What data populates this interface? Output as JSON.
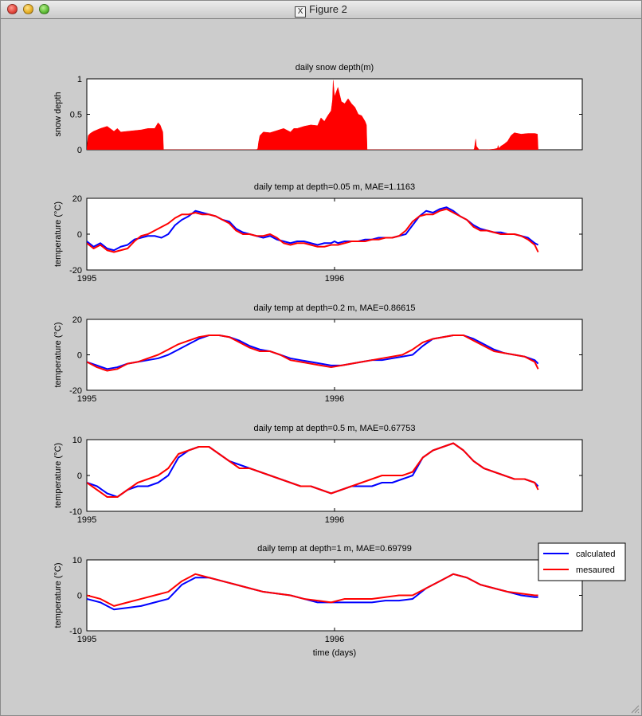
{
  "window": {
    "title": "Figure 2",
    "icon": "x11-icon"
  },
  "colors": {
    "calculated": "#0000ff",
    "measured": "#ff0000",
    "snow": "#ff0000"
  },
  "legend": {
    "items": [
      "calculated",
      "mesaured"
    ],
    "placement": "right of bottom panel, top"
  },
  "chart_data": [
    {
      "type": "area",
      "title": "daily snow depth(m)",
      "xlabel": "",
      "ylabel": "snow depth",
      "ylim": [
        0,
        1
      ],
      "yticks": [
        "0",
        "0.5",
        "1"
      ],
      "xlim": [
        0,
        730
      ],
      "xticks": [],
      "grid": false,
      "series": [
        {
          "x": [
            0,
            2,
            5,
            10,
            20,
            30,
            40,
            45,
            50,
            60,
            70,
            80,
            90,
            100,
            105,
            108,
            110,
            112,
            113,
            130,
            200,
            250,
            252,
            253,
            255,
            260,
            270,
            280,
            290,
            300,
            305,
            310,
            320,
            330,
            340,
            345,
            350,
            355,
            360,
            362,
            363,
            365,
            370,
            375,
            380,
            385,
            390,
            395,
            400,
            405,
            410,
            412,
            413,
            450,
            570,
            571,
            573,
            574,
            578,
            590,
            600,
            605,
            606,
            607,
            610,
            615,
            620,
            625,
            630,
            640,
            650,
            660,
            664,
            665
          ],
          "y": [
            0,
            0.2,
            0.23,
            0.26,
            0.3,
            0.33,
            0.26,
            0.3,
            0.25,
            0.26,
            0.27,
            0.28,
            0.3,
            0.3,
            0.38,
            0.35,
            0.3,
            0.25,
            0,
            0,
            0,
            0,
            0.02,
            0.1,
            0.2,
            0.25,
            0.24,
            0.27,
            0.3,
            0.25,
            0.3,
            0.3,
            0.33,
            0.35,
            0.34,
            0.45,
            0.4,
            0.48,
            0.55,
            0.7,
            0.98,
            0.75,
            0.88,
            0.68,
            0.65,
            0.72,
            0.65,
            0.6,
            0.5,
            0.48,
            0.4,
            0.35,
            0,
            0,
            0,
            0.02,
            0.15,
            0.05,
            0,
            0,
            0.01,
            0.02,
            0.06,
            0.02,
            0.05,
            0.08,
            0.12,
            0.2,
            0.24,
            0.22,
            0.23,
            0.23,
            0.22,
            0
          ]
        }
      ]
    },
    {
      "type": "line",
      "title": "daily temp at depth=0.05 m,   MAE=1.1163",
      "xlabel": "",
      "ylabel": "temperature (°C)",
      "ylim": [
        -20,
        20
      ],
      "yticks": [
        "-20",
        "0",
        "20"
      ],
      "xlim": [
        0,
        730
      ],
      "xticks": [
        {
          "x": 0,
          "label": "1995"
        },
        {
          "x": 365,
          "label": "1996"
        }
      ],
      "grid": false,
      "series": [
        {
          "name": "calculated",
          "x": [
            0,
            10,
            20,
            30,
            40,
            50,
            60,
            70,
            80,
            90,
            100,
            110,
            120,
            130,
            140,
            150,
            160,
            170,
            180,
            190,
            200,
            210,
            220,
            230,
            240,
            250,
            260,
            270,
            280,
            290,
            300,
            310,
            320,
            330,
            340,
            350,
            360,
            365,
            370,
            380,
            390,
            400,
            410,
            420,
            430,
            440,
            450,
            460,
            470,
            480,
            490,
            500,
            510,
            520,
            530,
            540,
            550,
            560,
            570,
            580,
            590,
            600,
            610,
            620,
            630,
            640,
            650,
            660,
            665
          ],
          "y": [
            -4,
            -7,
            -5,
            -8,
            -9,
            -7,
            -6,
            -3,
            -2,
            -1,
            -1,
            -2,
            0,
            5,
            8,
            10,
            13,
            12,
            11,
            10,
            8,
            7,
            3,
            1,
            0,
            -1,
            -2,
            -1,
            -3,
            -4,
            -5,
            -4,
            -4,
            -5,
            -6,
            -5,
            -5,
            -4,
            -5,
            -4,
            -4,
            -4,
            -3,
            -3,
            -2,
            -2,
            -2,
            -1,
            0,
            5,
            10,
            13,
            12,
            14,
            15,
            13,
            10,
            8,
            5,
            3,
            2,
            1,
            1,
            0,
            0,
            -1,
            -2,
            -5,
            -6
          ]
        },
        {
          "name": "mesaured",
          "x": [
            0,
            10,
            20,
            30,
            40,
            50,
            60,
            70,
            80,
            90,
            100,
            110,
            120,
            130,
            140,
            150,
            160,
            170,
            180,
            190,
            200,
            210,
            220,
            230,
            240,
            250,
            260,
            270,
            280,
            290,
            300,
            310,
            320,
            330,
            340,
            350,
            360,
            365,
            370,
            380,
            390,
            400,
            410,
            420,
            430,
            440,
            450,
            460,
            470,
            480,
            490,
            500,
            510,
            520,
            530,
            540,
            550,
            560,
            570,
            580,
            590,
            600,
            610,
            620,
            630,
            640,
            650,
            660,
            665
          ],
          "y": [
            -5,
            -8,
            -6,
            -9,
            -10,
            -9,
            -8,
            -4,
            -1,
            0,
            2,
            4,
            6,
            9,
            11,
            11,
            12,
            11,
            11,
            10,
            8,
            6,
            2,
            0,
            0,
            -1,
            -1,
            0,
            -2,
            -5,
            -6,
            -5,
            -5,
            -6,
            -7,
            -7,
            -6,
            -6,
            -6,
            -5,
            -4,
            -4,
            -4,
            -3,
            -3,
            -2,
            -2,
            -1,
            2,
            7,
            10,
            11,
            11,
            13,
            14,
            12,
            10,
            8,
            4,
            2,
            2,
            1,
            0,
            0,
            0,
            -1,
            -3,
            -6,
            -10
          ]
        }
      ]
    },
    {
      "type": "line",
      "title": "daily temp at depth=0.2 m,   MAE=0.86615",
      "xlabel": "",
      "ylabel": "temperature (°C)",
      "ylim": [
        -20,
        20
      ],
      "yticks": [
        "-20",
        "0",
        "20"
      ],
      "xlim": [
        0,
        730
      ],
      "xticks": [
        {
          "x": 0,
          "label": "1995"
        },
        {
          "x": 365,
          "label": "1996"
        }
      ],
      "grid": false,
      "series": [
        {
          "name": "calculated",
          "x": [
            0,
            15,
            30,
            45,
            60,
            75,
            90,
            105,
            120,
            135,
            150,
            165,
            180,
            195,
            210,
            225,
            240,
            255,
            270,
            285,
            300,
            315,
            330,
            345,
            360,
            375,
            390,
            405,
            420,
            435,
            450,
            465,
            480,
            495,
            510,
            525,
            540,
            555,
            570,
            585,
            600,
            615,
            630,
            645,
            660,
            665
          ],
          "y": [
            -4,
            -6,
            -8,
            -7,
            -5,
            -4,
            -3,
            -2,
            0,
            3,
            6,
            9,
            11,
            11,
            10,
            8,
            5,
            3,
            2,
            0,
            -2,
            -3,
            -4,
            -5,
            -6,
            -6,
            -5,
            -4,
            -3,
            -3,
            -2,
            -1,
            0,
            5,
            9,
            10,
            11,
            11,
            9,
            6,
            3,
            1,
            0,
            -1,
            -3,
            -5
          ]
        },
        {
          "name": "mesaured",
          "x": [
            0,
            15,
            30,
            45,
            60,
            75,
            90,
            105,
            120,
            135,
            150,
            165,
            180,
            195,
            210,
            225,
            240,
            255,
            270,
            285,
            300,
            315,
            330,
            345,
            360,
            375,
            390,
            405,
            420,
            435,
            450,
            465,
            480,
            495,
            510,
            525,
            540,
            555,
            570,
            585,
            600,
            615,
            630,
            645,
            660,
            665
          ],
          "y": [
            -4,
            -7,
            -9,
            -8,
            -5,
            -4,
            -2,
            0,
            3,
            6,
            8,
            10,
            11,
            11,
            10,
            7,
            4,
            2,
            2,
            0,
            -3,
            -4,
            -5,
            -6,
            -7,
            -6,
            -5,
            -4,
            -3,
            -2,
            -1,
            0,
            3,
            7,
            9,
            10,
            11,
            11,
            8,
            5,
            2,
            1,
            0,
            -1,
            -4,
            -8
          ]
        }
      ]
    },
    {
      "type": "line",
      "title": "daily temp at depth=0.5 m,   MAE=0.67753",
      "xlabel": "",
      "ylabel": "temperature (°C)",
      "ylim": [
        -10,
        10
      ],
      "yticks": [
        "-10",
        "0",
        "10"
      ],
      "xlim": [
        0,
        730
      ],
      "xticks": [
        {
          "x": 0,
          "label": "1995"
        },
        {
          "x": 365,
          "label": "1996"
        }
      ],
      "grid": false,
      "series": [
        {
          "name": "calculated",
          "x": [
            0,
            15,
            30,
            45,
            60,
            75,
            90,
            105,
            120,
            135,
            150,
            165,
            180,
            195,
            210,
            225,
            240,
            255,
            270,
            285,
            300,
            315,
            330,
            345,
            360,
            375,
            390,
            405,
            420,
            435,
            450,
            465,
            480,
            495,
            510,
            525,
            540,
            555,
            570,
            585,
            600,
            615,
            630,
            645,
            660,
            665
          ],
          "y": [
            -2,
            -3,
            -5,
            -6,
            -4,
            -3,
            -3,
            -2,
            0,
            5,
            7,
            8,
            8,
            6,
            4,
            3,
            2,
            1,
            0,
            -1,
            -2,
            -3,
            -3,
            -4,
            -5,
            -4,
            -3,
            -3,
            -3,
            -2,
            -2,
            -1,
            0,
            5,
            7,
            8,
            9,
            7,
            4,
            2,
            1,
            0,
            -1,
            -1,
            -2,
            -3
          ]
        },
        {
          "name": "mesaured",
          "x": [
            0,
            15,
            30,
            45,
            60,
            75,
            90,
            105,
            120,
            135,
            150,
            165,
            180,
            195,
            210,
            225,
            240,
            255,
            270,
            285,
            300,
            315,
            330,
            345,
            360,
            375,
            390,
            405,
            420,
            435,
            450,
            465,
            480,
            495,
            510,
            525,
            540,
            555,
            570,
            585,
            600,
            615,
            630,
            645,
            660,
            665
          ],
          "y": [
            -2,
            -4,
            -6,
            -6,
            -4,
            -2,
            -1,
            0,
            2,
            6,
            7,
            8,
            8,
            6,
            4,
            2,
            2,
            1,
            0,
            -1,
            -2,
            -3,
            -3,
            -4,
            -5,
            -4,
            -3,
            -2,
            -1,
            0,
            0,
            0,
            1,
            5,
            7,
            8,
            9,
            7,
            4,
            2,
            1,
            0,
            -1,
            -1,
            -2,
            -4
          ]
        }
      ]
    },
    {
      "type": "line",
      "title": "daily temp at depth=1 m,   MAE=0.69799",
      "xlabel": "time (days)",
      "ylabel": "temperature (°C)",
      "ylim": [
        -10,
        10
      ],
      "yticks": [
        "-10",
        "0",
        "10"
      ],
      "xlim": [
        0,
        730
      ],
      "xticks": [
        {
          "x": 0,
          "label": "1995"
        },
        {
          "x": 365,
          "label": "1996"
        }
      ],
      "grid": false,
      "series": [
        {
          "name": "calculated",
          "x": [
            0,
            20,
            40,
            60,
            80,
            100,
            120,
            140,
            160,
            180,
            200,
            220,
            240,
            260,
            280,
            300,
            320,
            340,
            360,
            380,
            400,
            420,
            440,
            460,
            480,
            500,
            520,
            540,
            560,
            580,
            600,
            620,
            640,
            660,
            665
          ],
          "y": [
            -1,
            -2,
            -4,
            -3.5,
            -3,
            -2,
            -1,
            3,
            5,
            5,
            4,
            3,
            2,
            1,
            0.5,
            0,
            -1,
            -2,
            -2,
            -2,
            -2,
            -2,
            -1.5,
            -1.5,
            -1,
            2,
            4,
            6,
            5,
            3,
            2,
            1,
            0,
            -0.5,
            -0.5
          ]
        },
        {
          "name": "mesaured",
          "x": [
            0,
            20,
            40,
            60,
            80,
            100,
            120,
            140,
            160,
            180,
            200,
            220,
            240,
            260,
            280,
            300,
            320,
            340,
            360,
            380,
            400,
            420,
            440,
            460,
            480,
            500,
            520,
            540,
            560,
            580,
            600,
            620,
            640,
            660,
            665
          ],
          "y": [
            0,
            -1,
            -3,
            -2,
            -1,
            0,
            1,
            4,
            6,
            5,
            4,
            3,
            2,
            1,
            0.5,
            0,
            -1,
            -1.5,
            -2,
            -1,
            -1,
            -1,
            -0.5,
            0,
            0,
            2,
            4,
            6,
            5,
            3,
            2,
            1,
            0.5,
            0,
            0
          ]
        }
      ]
    }
  ]
}
